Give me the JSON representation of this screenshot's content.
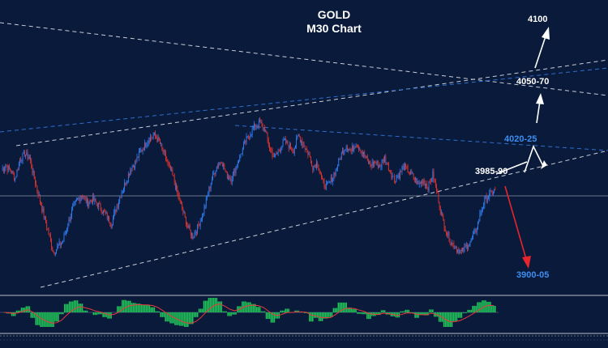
{
  "chart_data": {
    "type": "candlestick",
    "title": "GOLD",
    "subtitle": "M30 Chart",
    "xlabel": "",
    "ylabel": "",
    "grid": false,
    "ylim": [
      3880,
      4120
    ],
    "levels": [
      {
        "label": "4100",
        "price": 4100,
        "color": "#ffffff"
      },
      {
        "label": "4050-70",
        "price": 4060,
        "color": "#ffffff"
      },
      {
        "label": "4020-25",
        "price": 4022.5,
        "color": "#3d8ef0"
      },
      {
        "label": "3985-90",
        "price": 3987.5,
        "color": "#ffffff"
      },
      {
        "label": "3900-05",
        "price": 3902.5,
        "color": "#3d8ef0"
      }
    ],
    "scenarios": [
      "bullish breakout above 3985-90 toward 4020-25, 4050-70 and 4100",
      "bearish rejection toward 3900-05"
    ],
    "closes": [
      3985,
      3982,
      3975,
      3990,
      3995,
      3992,
      3975,
      3960,
      3945,
      3930,
      3915,
      3920,
      3925,
      3938,
      3950,
      3958,
      3962,
      3955,
      3958,
      3955,
      3950,
      3945,
      3938,
      3950,
      3962,
      3972,
      3982,
      3988,
      3996,
      4002,
      4008,
      4010,
      4005,
      3995,
      3985,
      3975,
      3960,
      3948,
      3935,
      3928,
      3935,
      3945,
      3960,
      3975,
      3985,
      3990,
      3978,
      3975,
      3984,
      3995,
      4005,
      4012,
      4018,
      4020,
      4015,
      4000,
      3992,
      3998,
      4005,
      4002,
      3998,
      4010,
      4003,
      3996,
      3985,
      3988,
      3972,
      3968,
      3975,
      3984,
      3995,
      4002,
      3997,
      4004,
      3998,
      3992,
      3986,
      3988,
      3985,
      3992,
      3982,
      3974,
      3978,
      3985,
      3981,
      3976,
      3970,
      3974,
      3968,
      3978,
      3962,
      3942,
      3930,
      3922,
      3918,
      3915,
      3920,
      3925,
      3933,
      3948,
      3958,
      3962,
      3966
    ]
  }
}
